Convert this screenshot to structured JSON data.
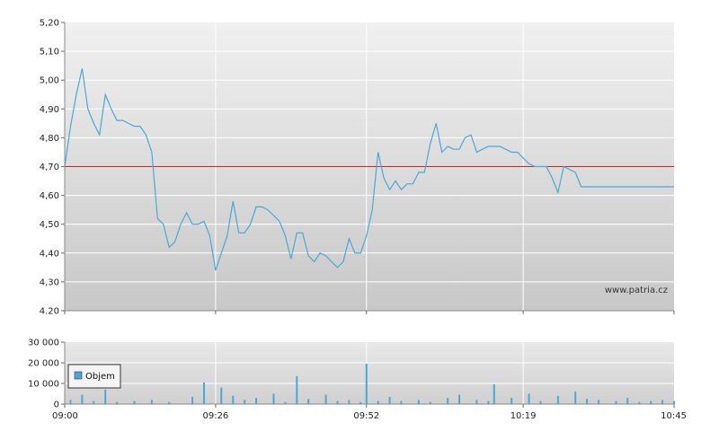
{
  "chart_data": [
    {
      "type": "line",
      "ylim": [
        4.2,
        5.2
      ],
      "y_ticks": [
        "5,20",
        "5,10",
        "5,00",
        "4,90",
        "4,80",
        "4,70",
        "4,60",
        "4,50",
        "4,40",
        "4,30",
        "4.20"
      ],
      "reference_line": 4.7,
      "watermark": "www.patria.cz",
      "grid": true,
      "colors": {
        "line": "#4aa8d8",
        "reference": "#cc2222",
        "grid": "#ffffff"
      },
      "series": [
        {
          "x_minutes": [
            0,
            1,
            2,
            3,
            4,
            5,
            6,
            7,
            8,
            9,
            10,
            11,
            12,
            13,
            14,
            15,
            16,
            17,
            18,
            19,
            20,
            21,
            22,
            23,
            24,
            25,
            26,
            27,
            28,
            29,
            30,
            31,
            32,
            33,
            34,
            35,
            36,
            37,
            38,
            39,
            40,
            41,
            42,
            43,
            44,
            45,
            46,
            47,
            48,
            49,
            50,
            51,
            52,
            53,
            54,
            55,
            56,
            57,
            58,
            59,
            60,
            61,
            62,
            63,
            64,
            65,
            66,
            67,
            68,
            69,
            70,
            71,
            72,
            73,
            74,
            75,
            76,
            77,
            78,
            79,
            80,
            81,
            82,
            83,
            84,
            85,
            86,
            87,
            88,
            89,
            90,
            91,
            92,
            93,
            94,
            95,
            96,
            97,
            98,
            99,
            100,
            101,
            102,
            103,
            104,
            105
          ],
          "y": [
            4.7,
            4.84,
            4.95,
            5.04,
            4.9,
            4.85,
            4.81,
            4.95,
            4.9,
            4.86,
            4.86,
            4.85,
            4.84,
            4.84,
            4.81,
            4.75,
            4.52,
            4.5,
            4.42,
            4.44,
            4.5,
            4.54,
            4.5,
            4.5,
            4.51,
            4.46,
            4.34,
            4.4,
            4.46,
            4.58,
            4.47,
            4.47,
            4.5,
            4.56,
            4.56,
            4.55,
            4.53,
            4.51,
            4.46,
            4.38,
            4.47,
            4.47,
            4.39,
            4.37,
            4.4,
            4.39,
            4.37,
            4.35,
            4.37,
            4.45,
            4.4,
            4.4,
            4.46,
            4.55,
            4.75,
            4.66,
            4.62,
            4.65,
            4.62,
            4.64,
            4.64,
            4.68,
            4.68,
            4.78,
            4.85,
            4.75,
            4.77,
            4.76,
            4.76,
            4.8,
            4.81,
            4.75,
            4.76,
            4.77,
            4.77,
            4.77,
            4.76,
            4.75,
            4.75,
            4.73,
            4.71,
            4.7,
            4.7,
            4.7,
            4.66,
            4.61,
            4.7,
            4.69,
            4.68,
            4.63,
            4.63,
            4.63,
            4.63,
            4.63,
            4.63,
            4.63,
            4.63,
            4.63,
            4.63,
            4.63,
            4.63,
            4.63,
            4.63,
            4.63,
            4.63,
            4.63
          ]
        }
      ]
    },
    {
      "type": "bar",
      "ylim": [
        0,
        30000
      ],
      "y_ticks": [
        "30 000",
        "20 000",
        "10 000",
        "0"
      ],
      "x_ticks": [
        "09:00",
        "09:26",
        "09:52",
        "10:19",
        "10:45"
      ],
      "legend": {
        "entries": [
          "Objem"
        ],
        "placement": "top-left"
      },
      "colors": {
        "bar": "#4aa8d8"
      },
      "series": [
        {
          "name": "Objem",
          "x_minutes": [
            1,
            3,
            5,
            7,
            9,
            12,
            15,
            18,
            22,
            24,
            27,
            29,
            31,
            33,
            36,
            38,
            40,
            42,
            45,
            47,
            49,
            51,
            52,
            54,
            56,
            58,
            61,
            63,
            66,
            68,
            71,
            73,
            74,
            77,
            80,
            82,
            85,
            88,
            90,
            92,
            95,
            97,
            99,
            101,
            103,
            105
          ],
          "values": [
            2000,
            4500,
            1500,
            7000,
            1000,
            1500,
            2000,
            1000,
            3500,
            10500,
            8000,
            4000,
            2000,
            3000,
            5000,
            1000,
            13500,
            2500,
            4500,
            1500,
            2000,
            1000,
            19500,
            1500,
            3500,
            1500,
            2000,
            1000,
            3000,
            4500,
            2000,
            1500,
            9500,
            3000,
            5000,
            1500,
            4000,
            6000,
            2500,
            2000,
            1500,
            3000,
            1000,
            1500,
            2000,
            1500
          ]
        }
      ]
    }
  ]
}
